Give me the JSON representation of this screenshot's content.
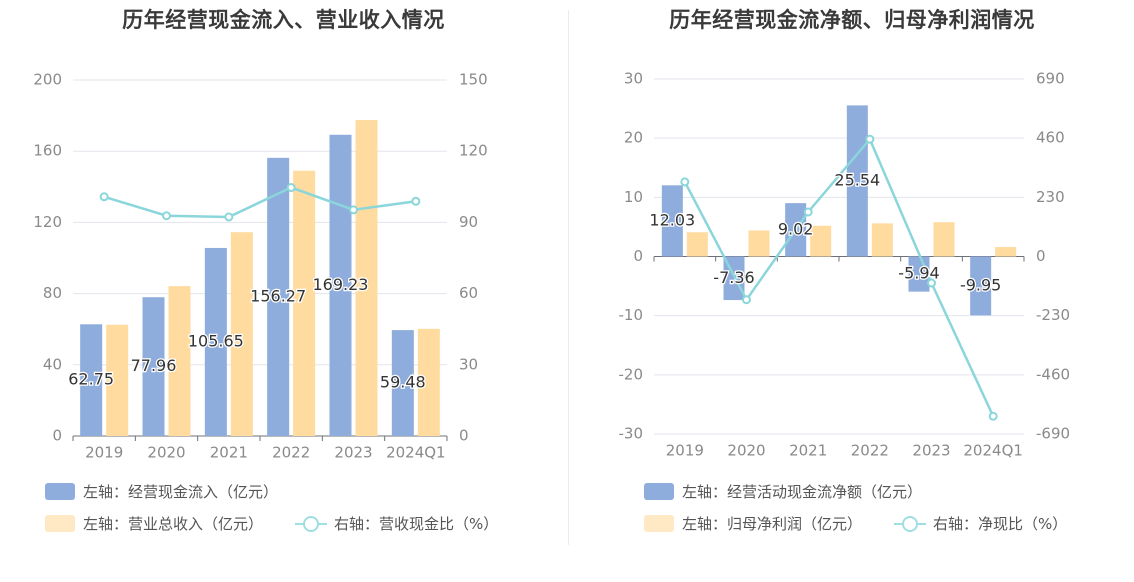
{
  "chart_data": [
    {
      "type": "bar",
      "title": "历年经营现金流入、营业收入情况",
      "categories": [
        "2019",
        "2020",
        "2021",
        "2022",
        "2023",
        "2024Q1"
      ],
      "series": [
        {
          "name": "左轴：经营现金流入（亿元）",
          "axis": "left",
          "type": "bar",
          "color": "#8eacdc",
          "values": [
            62.75,
            77.96,
            105.65,
            156.27,
            169.23,
            59.48
          ]
        },
        {
          "name": "左轴：营业总收入（亿元）",
          "axis": "left",
          "type": "bar",
          "color": "#ffdba0",
          "values": [
            62.5,
            84.2,
            114.5,
            149.0,
            177.5,
            60.2
          ]
        },
        {
          "name": "右轴：营收现金比（%）",
          "axis": "right",
          "type": "line",
          "color": "#8ad6da",
          "values": [
            100.8,
            92.8,
            92.3,
            104.7,
            95.3,
            98.9
          ]
        }
      ],
      "left_axis": {
        "ylim": [
          0,
          200
        ],
        "ticks": [
          "0",
          "40",
          "80",
          "120",
          "160",
          "200"
        ]
      },
      "right_axis": {
        "ylim": [
          0,
          150
        ],
        "ticks": [
          "0",
          "30",
          "60",
          "90",
          "120",
          "150"
        ]
      },
      "data_labels": [
        "62.75",
        "77.96",
        "105.65",
        "156.27",
        "169.23",
        "59.48"
      ],
      "grid": true,
      "legend_position": "bottom"
    },
    {
      "type": "bar",
      "title": "历年经营现金流净额、归母净利润情况",
      "categories": [
        "2019",
        "2020",
        "2021",
        "2022",
        "2023",
        "2024Q1"
      ],
      "series": [
        {
          "name": "左轴：经营活动现金流净额（亿元）",
          "axis": "left",
          "type": "bar",
          "color": "#8eacdc",
          "values": [
            12.03,
            -7.36,
            9.02,
            25.54,
            -5.94,
            -9.95
          ]
        },
        {
          "name": "左轴：归母净利润（亿元）",
          "axis": "left",
          "type": "bar",
          "color": "#ffdba0",
          "values": [
            4.1,
            4.4,
            5.2,
            5.6,
            5.8,
            1.6
          ]
        },
        {
          "name": "右轴：净现比（%）",
          "axis": "right",
          "type": "line",
          "color": "#8ad6da",
          "values": [
            290,
            -168,
            173,
            456,
            -103,
            -621
          ]
        }
      ],
      "left_axis": {
        "ylim": [
          -30,
          30
        ],
        "ticks": [
          "-30",
          "-20",
          "-10",
          "0",
          "10",
          "20",
          "30"
        ]
      },
      "right_axis": {
        "ylim": [
          -690,
          690
        ],
        "ticks": [
          "-690",
          "-460",
          "-230",
          "0",
          "230",
          "460",
          "690"
        ]
      },
      "data_labels": [
        "12.03",
        "-7.36",
        "9.02",
        "25.54",
        "-5.94",
        "-9.95"
      ],
      "grid": true,
      "legend_position": "bottom"
    }
  ]
}
